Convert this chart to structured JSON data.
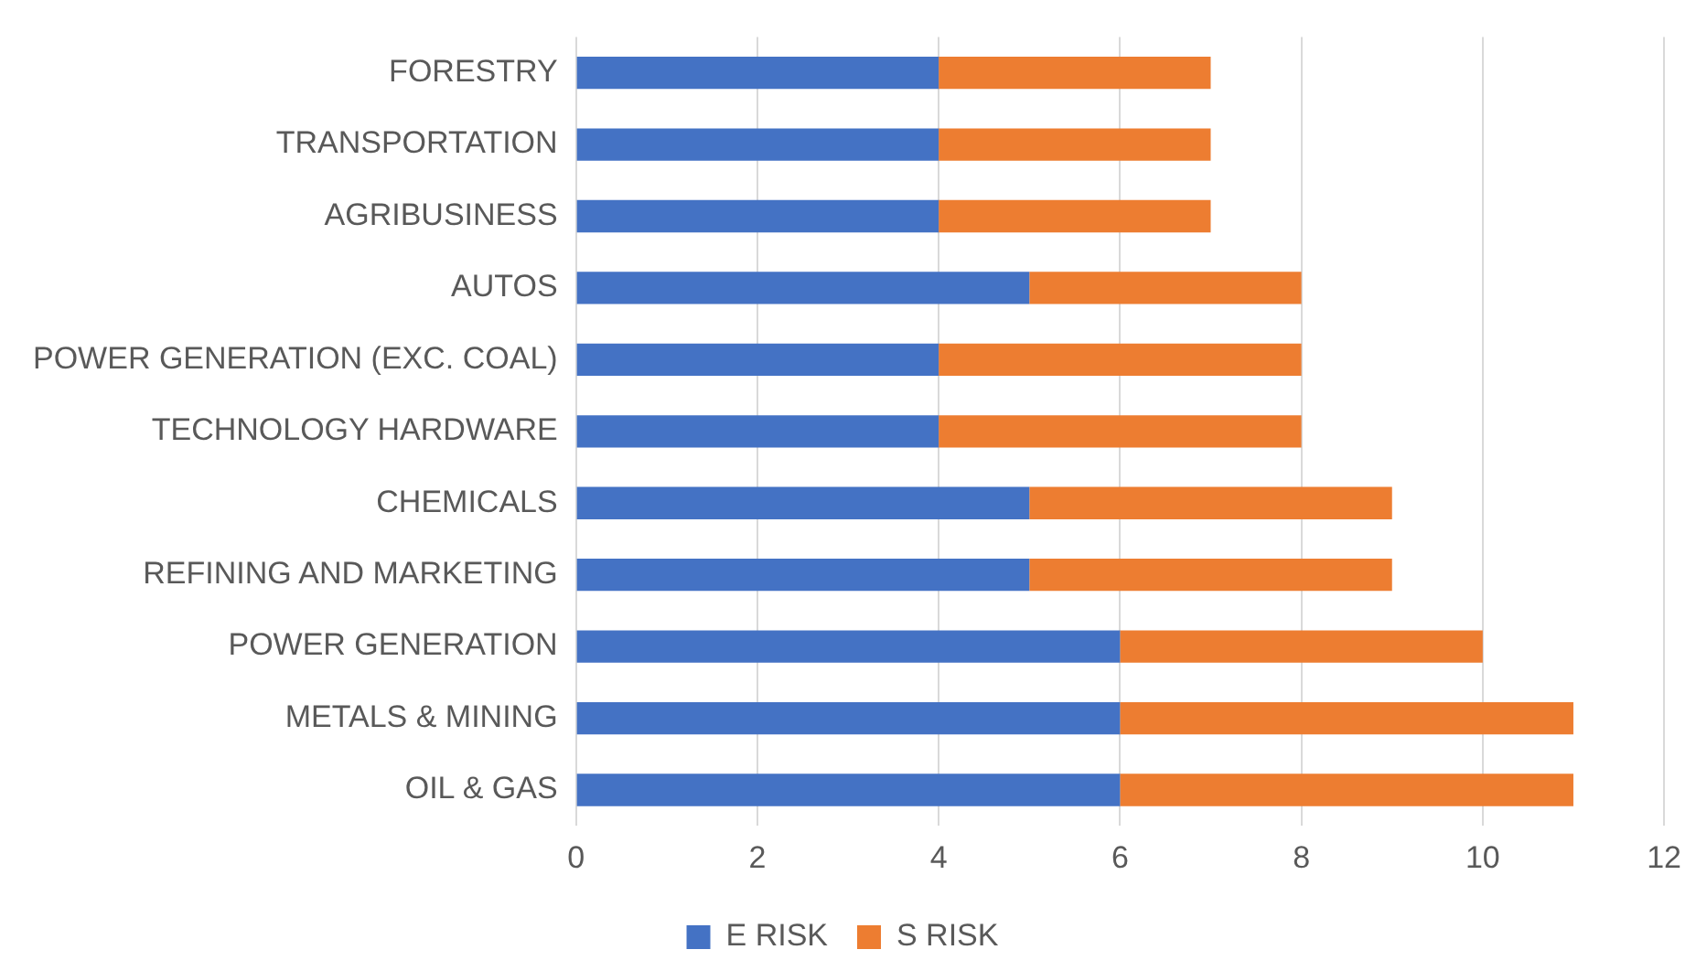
{
  "chart_data": {
    "type": "bar",
    "orientation": "horizontal",
    "stacked": true,
    "categories": [
      "FORESTRY",
      "TRANSPORTATION",
      "AGRIBUSINESS",
      "AUTOS",
      "POWER GENERATION (EXC. COAL)",
      "TECHNOLOGY HARDWARE",
      "CHEMICALS",
      "REFINING AND MARKETING",
      "POWER GENERATION",
      "METALS & MINING",
      "OIL & GAS"
    ],
    "series": [
      {
        "name": "E RISK",
        "color": "#4472c4",
        "values": [
          4,
          4,
          4,
          5,
          4,
          4,
          5,
          5,
          6,
          6,
          6
        ]
      },
      {
        "name": "S RISK",
        "color": "#ed7d31",
        "values": [
          3,
          3,
          3,
          3,
          4,
          4,
          4,
          4,
          4,
          5,
          5
        ]
      }
    ],
    "xlim": [
      0,
      12
    ],
    "xticks": [
      0,
      2,
      4,
      6,
      8,
      10,
      12
    ],
    "grid": "x",
    "legend": "bottom"
  }
}
